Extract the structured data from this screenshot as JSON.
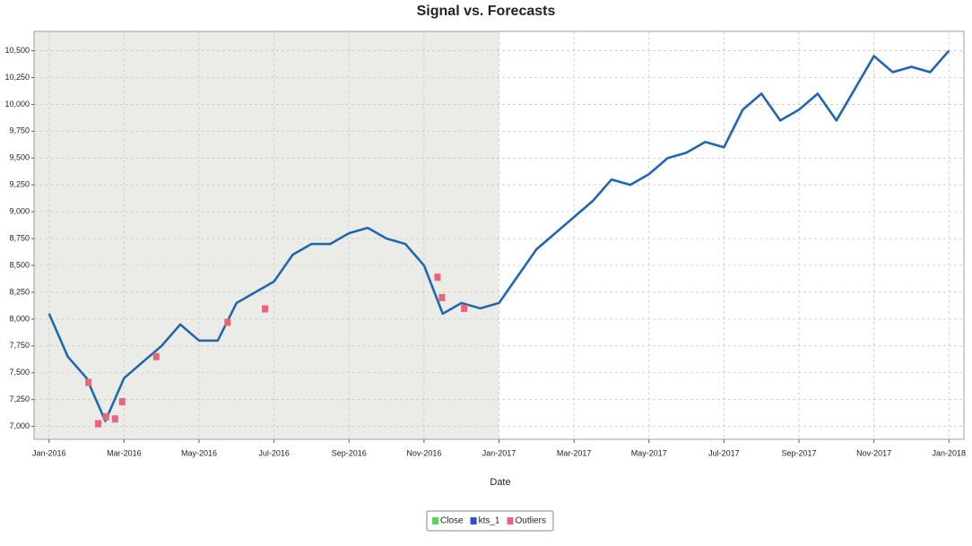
{
  "chart_data": {
    "type": "line",
    "title": "Signal vs. Forecasts",
    "x_label": "Date",
    "xlim": [
      -0.4,
      24.4
    ],
    "xticks": [
      {
        "value": 0,
        "label": "Jan-2016"
      },
      {
        "value": 2,
        "label": "Mar-2016"
      },
      {
        "value": 4,
        "label": "May-2016"
      },
      {
        "value": 6,
        "label": "Jul-2016"
      },
      {
        "value": 8,
        "label": "Sep-2016"
      },
      {
        "value": 10,
        "label": "Nov-2016"
      },
      {
        "value": 12,
        "label": "Jan-2017"
      },
      {
        "value": 14,
        "label": "Mar-2017"
      },
      {
        "value": 16,
        "label": "May-2017"
      },
      {
        "value": 18,
        "label": "Jul-2017"
      },
      {
        "value": 20,
        "label": "Sep-2017"
      },
      {
        "value": 22,
        "label": "Nov-2017"
      },
      {
        "value": 24,
        "label": "Jan-2018"
      }
    ],
    "ylim": [
      6880,
      10680
    ],
    "yticks": [
      {
        "value": 7000,
        "label": "7,000"
      },
      {
        "value": 7250,
        "label": "7,250"
      },
      {
        "value": 7500,
        "label": "7,500"
      },
      {
        "value": 7750,
        "label": "7,750"
      },
      {
        "value": 8000,
        "label": "8,000"
      },
      {
        "value": 8250,
        "label": "8,250"
      },
      {
        "value": 8500,
        "label": "8,500"
      },
      {
        "value": 8750,
        "label": "8,750"
      },
      {
        "value": 9000,
        "label": "9,000"
      },
      {
        "value": 9250,
        "label": "9,250"
      },
      {
        "value": 9500,
        "label": "9,500"
      },
      {
        "value": 9750,
        "label": "9,750"
      },
      {
        "value": 10000,
        "label": "10,000"
      },
      {
        "value": 10250,
        "label": "10,250"
      },
      {
        "value": 10500,
        "label": "10,500"
      }
    ],
    "grid": true,
    "shaded_range": [
      -0.4,
      12
    ],
    "legend": "bottom",
    "x": [
      0,
      0.5,
      1,
      1.5,
      2,
      2.5,
      3,
      3.5,
      4,
      4.5,
      5,
      5.5,
      6,
      6.5,
      7,
      7.5,
      8,
      8.5,
      9,
      9.5,
      10,
      10.5,
      11,
      11.5,
      12,
      12.5,
      13,
      13.5,
      14,
      14.5,
      15,
      15.5,
      16,
      16.5,
      17,
      17.5,
      18,
      18.5,
      19,
      19.5,
      20,
      20.5,
      21,
      21.5,
      22,
      22.5,
      23,
      23.5,
      24
    ],
    "series": [
      {
        "name": "Close",
        "color": "#5fd35f",
        "values": [
          8050,
          7650,
          7450,
          7050,
          7450,
          7600,
          7750,
          7950,
          7800,
          7800,
          8150,
          8250,
          8350,
          8600,
          8700,
          8700,
          8800,
          8850,
          8750,
          8700,
          8500,
          8050,
          8150,
          8100,
          8150,
          8400,
          8650,
          8800,
          8950,
          9100,
          9300,
          9250,
          9350,
          9500,
          9550,
          9650,
          9600,
          9950,
          10100,
          9850,
          9950,
          10100,
          9850,
          10150,
          10450,
          10300,
          10350,
          10300,
          10500
        ]
      },
      {
        "name": "kts_1",
        "color": "#2b4fd8",
        "values": [
          8050,
          7650,
          7450,
          7050,
          7450,
          7600,
          7750,
          7950,
          7800,
          7800,
          8150,
          8250,
          8350,
          8600,
          8700,
          8700,
          8800,
          8850,
          8750,
          8700,
          8500,
          8050,
          8150,
          8100,
          8150,
          8400,
          8650,
          8800,
          8950,
          9100,
          9300,
          9250,
          9350,
          9500,
          9550,
          9650,
          9600,
          9950,
          10100,
          9850,
          9950,
          10100,
          9850,
          10150,
          10450,
          10300,
          10350,
          10300,
          10500
        ]
      },
      {
        "name": "Outliers",
        "color": "#e8657a",
        "marker": "square",
        "x": [
          1.05,
          1.31,
          1.52,
          1.76,
          1.95,
          2.86,
          4.76,
          5.76,
          10.36,
          10.48,
          11.07
        ],
        "values": [
          7410,
          7025,
          7090,
          7070,
          7230,
          7650,
          7970,
          8095,
          8390,
          8200,
          8100
        ]
      }
    ]
  }
}
